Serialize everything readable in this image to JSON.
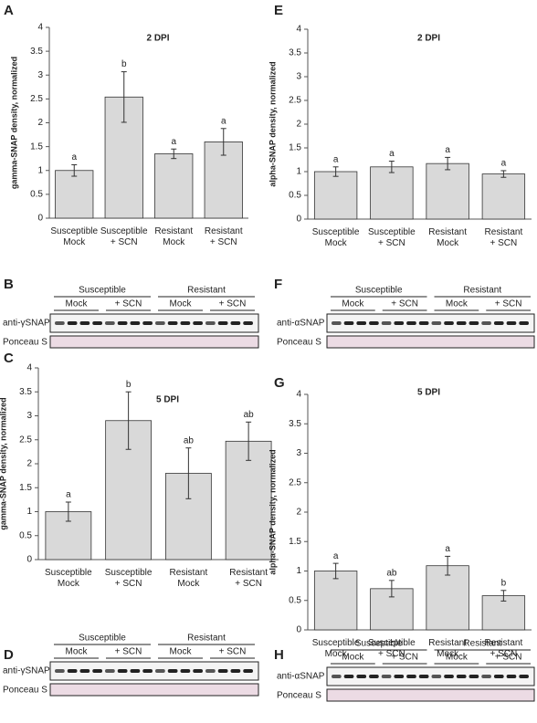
{
  "chart_data": [
    {
      "type": "bar",
      "panel": "A",
      "title": "2 DPI",
      "ylabel": "gamma-SNAP density, normalized",
      "categories": [
        "Susceptible\nMock",
        "Susceptible\n+ SCN",
        "Resistant\nMock",
        "Resistant\n+ SCN"
      ],
      "values": [
        1.0,
        2.54,
        1.35,
        1.6
      ],
      "errors": [
        0.12,
        0.53,
        0.1,
        0.28
      ],
      "value_labels": [
        "a",
        "b",
        "a",
        "a"
      ],
      "color": "#d9d9d9",
      "ylim": [
        0,
        4
      ],
      "yticks": [
        0,
        0.5,
        1,
        1.5,
        2,
        2.5,
        3,
        3.5,
        4
      ]
    },
    {
      "type": "bar",
      "panel": "E",
      "title": "2 DPI",
      "ylabel": "alpha-SNAP density, normalized",
      "categories": [
        "Susceptible\nMock",
        "Susceptible\n+ SCN",
        "Resistant\nMock",
        "Resistant\n+ SCN"
      ],
      "values": [
        1.0,
        1.1,
        1.17,
        0.95
      ],
      "errors": [
        0.1,
        0.12,
        0.13,
        0.07
      ],
      "value_labels": [
        "a",
        "a",
        "a",
        "a"
      ],
      "color": "#d9d9d9",
      "ylim": [
        0,
        4
      ],
      "yticks": [
        0,
        0.5,
        1,
        1.5,
        2,
        2.5,
        3,
        3.5,
        4
      ]
    },
    {
      "type": "bar",
      "panel": "C",
      "title": "5 DPI",
      "ylabel": "gamma-SNAP density, normalized",
      "categories": [
        "Susceptible\nMock",
        "Susceptible\n+ SCN",
        "Resistant\nMock",
        "Resistant\n+ SCN"
      ],
      "values": [
        1.0,
        2.9,
        1.8,
        2.47
      ],
      "errors": [
        0.2,
        0.6,
        0.53,
        0.4
      ],
      "value_labels": [
        "a",
        "b",
        "ab",
        "ab"
      ],
      "color": "#d9d9d9",
      "ylim": [
        0,
        4
      ],
      "yticks": [
        0,
        0.5,
        1,
        1.5,
        2,
        2.5,
        3,
        3.5,
        4
      ]
    },
    {
      "type": "bar",
      "panel": "G",
      "title": "5 DPI",
      "ylabel": "alpha-SNAP density, normalized",
      "categories": [
        "Susceptible\nMock",
        "Susceptible\n+ SCN",
        "Resistant\nMock",
        "Resistant\n+ SCN"
      ],
      "values": [
        1.0,
        0.7,
        1.09,
        0.58
      ],
      "errors": [
        0.13,
        0.14,
        0.16,
        0.09
      ],
      "value_labels": [
        "a",
        "ab",
        "a",
        "b"
      ],
      "color": "#d9d9d9",
      "ylim": [
        0,
        4
      ],
      "yticks": [
        0,
        0.5,
        1,
        1.5,
        2,
        2.5,
        3,
        3.5,
        4
      ]
    }
  ],
  "blots": [
    {
      "panel": "B",
      "groups": [
        "Susceptible",
        "Resistant"
      ],
      "subgroups": [
        "Mock",
        "+ SCN",
        "Mock",
        "+ SCN"
      ],
      "rows": [
        "anti-γSNAP",
        "Ponceau S"
      ]
    },
    {
      "panel": "F",
      "groups": [
        "Susceptible",
        "Resistant"
      ],
      "subgroups": [
        "Mock",
        "+ SCN",
        "Mock",
        "+ SCN"
      ],
      "rows": [
        "anti-αSNAP",
        "Ponceau S"
      ]
    },
    {
      "panel": "D",
      "groups": [
        "Susceptible",
        "Resistant"
      ],
      "subgroups": [
        "Mock",
        "+ SCN",
        "Mock",
        "+ SCN"
      ],
      "rows": [
        "anti-γSNAP",
        "Ponceau S"
      ]
    },
    {
      "panel": "H",
      "groups": [
        "Susceptible",
        "Resistant"
      ],
      "subgroups": [
        "Mock",
        "+ SCN",
        "Mock",
        "+ SCN"
      ],
      "rows": [
        "anti-αSNAP",
        "Ponceau S"
      ]
    }
  ]
}
